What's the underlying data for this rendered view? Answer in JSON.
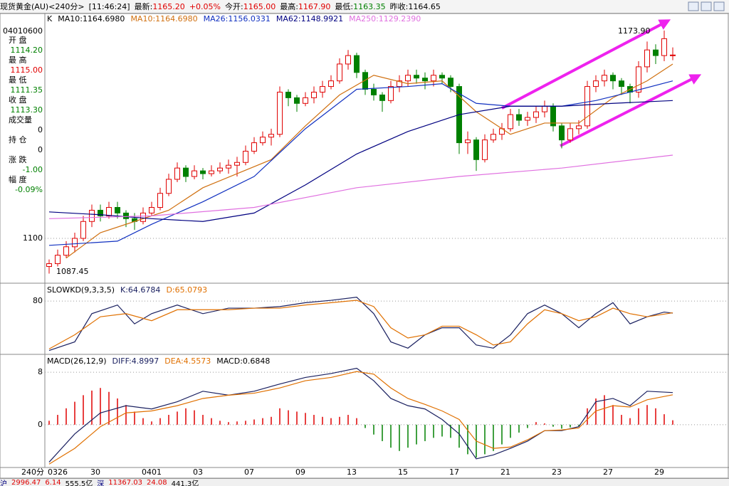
{
  "header": {
    "title": "现货黄金(AU)<240分>",
    "time": "[11:46:24]",
    "items": [
      {
        "label": "最新:",
        "value": "1165.20",
        "color": "#e00000"
      },
      {
        "label": "",
        "value": "+0.05%",
        "color": "#e00000"
      },
      {
        "label": "今开:",
        "value": "1165.00",
        "color": "#e00000"
      },
      {
        "label": "最高:",
        "value": "1167.90",
        "color": "#e00000"
      },
      {
        "label": "最低:",
        "value": "1163.35",
        "color": "#008000"
      },
      {
        "label": "昨收:",
        "value": "1164.65",
        "color": "#000000"
      }
    ]
  },
  "info_panel": {
    "date": "04010600",
    "items": [
      {
        "label": "开  盘",
        "value": "1114.20",
        "color": "#008000"
      },
      {
        "label": "最  高",
        "value": "1115.00",
        "color": "#e00000"
      },
      {
        "label": "最  低",
        "value": "1111.35",
        "color": "#008000"
      },
      {
        "label": "收  盘",
        "value": "1113.30",
        "color": "#008000"
      },
      {
        "label": "成交量",
        "value": "0",
        "color": "#000000"
      },
      {
        "label": "持  仓",
        "value": "0",
        "color": "#000000"
      },
      {
        "label": "涨  跌",
        "value": "-1.00",
        "color": "#008000"
      },
      {
        "label": "幅  度",
        "value": "-0.09%",
        "color": "#008000"
      }
    ]
  },
  "status_bar": [
    {
      "text": "沪",
      "color": "#000080"
    },
    {
      "text": "2996.47",
      "color": "#e00000"
    },
    {
      "text": "6.14",
      "color": "#e00000"
    },
    {
      "text": "555.5亿",
      "color": "#000000"
    },
    {
      "text": "深",
      "color": "#000080"
    },
    {
      "text": "11367.03",
      "color": "#e00000"
    },
    {
      "text": "24.08",
      "color": "#e00000"
    },
    {
      "text": "441.3亿",
      "color": "#000000"
    }
  ],
  "chart_data": [
    {
      "type": "candlestick",
      "label": "K",
      "legend_extra": "MA10:1164.6980",
      "high_label": "1173.90",
      "low_label": "1087.45",
      "up_color": "#e00000",
      "down_color": "#008000",
      "xlim": [
        -0.5,
        74.5
      ],
      "ylim": [
        1084.3,
        1179.7
      ],
      "yticks": [
        1100
      ],
      "grid": true,
      "ohlc": [
        [
          1090,
          1092.5,
          1087.45,
          1091
        ],
        [
          1091,
          1096,
          1090,
          1094
        ],
        [
          1094,
          1099,
          1093,
          1097
        ],
        [
          1097,
          1102,
          1095,
          1100
        ],
        [
          1100,
          1108,
          1099,
          1106
        ],
        [
          1106,
          1112,
          1104,
          1110
        ],
        [
          1110,
          1112,
          1106,
          1108
        ],
        [
          1108,
          1113,
          1107,
          1111
        ],
        [
          1111,
          1113,
          1107,
          1109
        ],
        [
          1109,
          1110,
          1104,
          1107
        ],
        [
          1107,
          1109,
          1103,
          1106
        ],
        [
          1106,
          1111,
          1105,
          1109
        ],
        [
          1109,
          1113,
          1108,
          1111
        ],
        [
          1111,
          1118,
          1110,
          1116
        ],
        [
          1116,
          1123,
          1115,
          1121
        ],
        [
          1121,
          1127,
          1120,
          1125
        ],
        [
          1125,
          1126,
          1120,
          1122
        ],
        [
          1122,
          1126,
          1121,
          1124
        ],
        [
          1124,
          1125,
          1121,
          1123
        ],
        [
          1123,
          1126,
          1122,
          1124
        ],
        [
          1124,
          1127,
          1123,
          1125
        ],
        [
          1125,
          1128,
          1123,
          1126
        ],
        [
          1126,
          1129,
          1122,
          1127
        ],
        [
          1127,
          1133,
          1126,
          1131
        ],
        [
          1131,
          1136,
          1130,
          1134
        ],
        [
          1134,
          1138,
          1133,
          1136
        ],
        [
          1136,
          1139,
          1133,
          1137
        ],
        [
          1137,
          1154,
          1136,
          1152
        ],
        [
          1152,
          1153,
          1147,
          1150
        ],
        [
          1150,
          1151,
          1145,
          1148
        ],
        [
          1148,
          1152,
          1147,
          1150
        ],
        [
          1150,
          1154,
          1148,
          1152
        ],
        [
          1152,
          1156,
          1150,
          1154
        ],
        [
          1154,
          1158,
          1153,
          1156
        ],
        [
          1156,
          1164,
          1155,
          1162
        ],
        [
          1162,
          1167,
          1160,
          1165
        ],
        [
          1165,
          1166,
          1157,
          1159
        ],
        [
          1159,
          1160,
          1151,
          1153
        ],
        [
          1153,
          1155,
          1149,
          1151
        ],
        [
          1151,
          1152,
          1145,
          1149
        ],
        [
          1149,
          1156,
          1148,
          1154
        ],
        [
          1154,
          1158,
          1152,
          1156
        ],
        [
          1156,
          1160,
          1154,
          1158
        ],
        [
          1158,
          1160,
          1155,
          1157
        ],
        [
          1157,
          1159,
          1153,
          1156
        ],
        [
          1156,
          1160,
          1154,
          1158
        ],
        [
          1158,
          1159,
          1155,
          1157
        ],
        [
          1157,
          1158,
          1152,
          1154
        ],
        [
          1154,
          1155,
          1130,
          1134
        ],
        [
          1134,
          1138,
          1130,
          1135
        ],
        [
          1135,
          1136,
          1124,
          1128
        ],
        [
          1128,
          1137,
          1127,
          1135
        ],
        [
          1135,
          1139,
          1134,
          1137
        ],
        [
          1137,
          1141,
          1135,
          1139
        ],
        [
          1139,
          1146,
          1138,
          1144
        ],
        [
          1144,
          1146,
          1140,
          1142
        ],
        [
          1142,
          1145,
          1140,
          1143
        ],
        [
          1143,
          1147,
          1141,
          1145
        ],
        [
          1145,
          1149,
          1143,
          1147
        ],
        [
          1147,
          1148,
          1138,
          1140
        ],
        [
          1140,
          1141,
          1132,
          1135
        ],
        [
          1135,
          1141,
          1134,
          1139
        ],
        [
          1139,
          1142,
          1137,
          1140
        ],
        [
          1140,
          1156,
          1139,
          1154
        ],
        [
          1154,
          1158,
          1152,
          1156
        ],
        [
          1156,
          1160,
          1154,
          1158
        ],
        [
          1158,
          1159,
          1153,
          1156
        ],
        [
          1156,
          1157,
          1151,
          1154
        ],
        [
          1154,
          1155,
          1148,
          1152
        ],
        [
          1152,
          1163,
          1150,
          1161
        ],
        [
          1161,
          1170,
          1159,
          1167
        ],
        [
          1167,
          1169,
          1162,
          1165
        ],
        [
          1165,
          1173.9,
          1163,
          1171
        ],
        [
          1165,
          1167.9,
          1163.35,
          1165.2
        ]
      ],
      "series": [
        {
          "name": "MA10:1164.6980",
          "color": "#d07010",
          "x": [
            2,
            6,
            10,
            14,
            18,
            22,
            26,
            30,
            34,
            38,
            42,
            46,
            50,
            54,
            58,
            62,
            66,
            70,
            73
          ],
          "values": [
            1093,
            1102,
            1106,
            1110,
            1118,
            1123,
            1128,
            1140,
            1151,
            1158,
            1155,
            1156,
            1145,
            1137,
            1141,
            1141,
            1150,
            1156,
            1162
          ]
        },
        {
          "name": "MA26:1156.0331",
          "color": "#1030c0",
          "x": [
            0,
            8,
            12,
            18,
            24,
            30,
            36,
            42,
            46,
            50,
            54,
            60,
            64,
            68,
            73
          ],
          "values": [
            1097.5,
            1099,
            1105,
            1113,
            1122,
            1139,
            1153,
            1154,
            1155,
            1148,
            1147,
            1147,
            1149,
            1152,
            1156
          ]
        },
        {
          "name": "MA62:1148.9921",
          "color": "#000080",
          "x": [
            0,
            6,
            12,
            18,
            24,
            30,
            36,
            42,
            48,
            54,
            60,
            66,
            73
          ],
          "values": [
            1109.4,
            1108.4,
            1107,
            1106,
            1109,
            1119,
            1130,
            1138,
            1144,
            1147,
            1147,
            1148,
            1149
          ]
        },
        {
          "name": "MA250:1129.2390",
          "color": "#e070e0",
          "x": [
            0,
            12,
            24,
            36,
            48,
            60,
            73
          ],
          "values": [
            1107,
            1108,
            1111,
            1118,
            1122,
            1125,
            1129.6
          ]
        }
      ]
    },
    {
      "type": "line",
      "title": "SLOWKD(9,3,3,5)",
      "xlim": [
        -0.5,
        74.5
      ],
      "ylim": [
        13,
        101
      ],
      "yticks": [
        80
      ],
      "grid": true,
      "series": [
        {
          "name": "K:64.6784",
          "color": "#1a2060",
          "x": [
            0,
            3,
            5,
            8,
            10,
            12,
            15,
            18,
            21,
            24,
            27,
            30,
            33,
            36,
            38,
            40,
            42,
            44,
            46,
            48,
            50,
            52,
            54,
            56,
            58,
            60,
            62,
            64,
            66,
            68,
            70,
            72,
            73
          ],
          "values": [
            17,
            28,
            64,
            75,
            51,
            64,
            75,
            64,
            71,
            71,
            73,
            78,
            81,
            85,
            64,
            28,
            20,
            37,
            46,
            46,
            24,
            20,
            37,
            64,
            75,
            64,
            46,
            64,
            78,
            51,
            60,
            66,
            64.68
          ]
        },
        {
          "name": "D:65.0793",
          "color": "#e07000",
          "x": [
            0,
            3,
            6,
            9,
            12,
            15,
            18,
            21,
            24,
            27,
            30,
            33,
            36,
            38,
            40,
            42,
            44,
            46,
            48,
            50,
            52,
            54,
            56,
            58,
            60,
            62,
            64,
            66,
            68,
            70,
            73
          ],
          "values": [
            19,
            37,
            60,
            64,
            55,
            69,
            69,
            69,
            71,
            71,
            75,
            78,
            81,
            73,
            46,
            33,
            37,
            48,
            48,
            37,
            24,
            28,
            51,
            69,
            64,
            55,
            60,
            71,
            64,
            60,
            65.08
          ]
        }
      ]
    },
    {
      "type": "macd",
      "title": "MACD(26,12,9)",
      "value_name": "MACD:0.6848",
      "pos_color": "#e00000",
      "neg_color": "#008000",
      "xlim": [
        -0.5,
        74.5
      ],
      "ylim": [
        -6.3,
        10.5
      ],
      "yticks": [
        0,
        8
      ],
      "grid": true,
      "xlabel": "240分",
      "xticks": [
        {
          "value": 1,
          "label": "0326"
        },
        {
          "value": 6,
          "label": "30"
        },
        {
          "value": 12,
          "label": "0401"
        },
        {
          "value": 18,
          "label": "03"
        },
        {
          "value": 24,
          "label": "07"
        },
        {
          "value": 30,
          "label": "09"
        },
        {
          "value": 36,
          "label": "13"
        },
        {
          "value": 42,
          "label": "15"
        },
        {
          "value": 48,
          "label": "17"
        },
        {
          "value": 54,
          "label": "21"
        },
        {
          "value": 60,
          "label": "23"
        },
        {
          "value": 66,
          "label": "27"
        },
        {
          "value": 72,
          "label": "29"
        }
      ],
      "values": [
        0.6,
        1.5,
        2.5,
        3.5,
        4.5,
        5.2,
        5.6,
        5,
        4,
        3,
        2,
        1,
        0.5,
        1,
        1.5,
        2,
        2.5,
        2.2,
        1.5,
        1,
        0.6,
        0.4,
        0.5,
        0.6,
        0.8,
        1.0,
        1.2,
        2.5,
        2.2,
        2,
        1.8,
        1.5,
        1.2,
        1,
        1.2,
        1.5,
        1,
        -0.5,
        -1.5,
        -2.5,
        -3.5,
        -4,
        -3.5,
        -3,
        -2.5,
        -2,
        -1.8,
        -2,
        -3.5,
        -4.5,
        -5,
        -4.5,
        -4,
        -3,
        -2,
        -1.2,
        -0.5,
        0.4,
        0.2,
        -0.3,
        -0.6,
        -0.4,
        -0.2,
        2.5,
        4,
        4.5,
        3,
        1.5,
        1,
        2.5,
        3,
        2.5,
        1.6,
        0.68
      ],
      "series": [
        {
          "name": "DIFF:4.8997",
          "color": "#1a2060",
          "x": [
            0,
            3,
            6,
            9,
            12,
            15,
            18,
            21,
            24,
            27,
            30,
            33,
            36,
            38,
            40,
            42,
            44,
            46,
            48,
            50,
            52,
            54,
            56,
            58,
            60,
            62,
            64,
            66,
            68,
            70,
            73
          ],
          "values": [
            -5.7,
            -1.4,
            1.8,
            2.9,
            2.4,
            3.5,
            5.1,
            4.5,
            5.1,
            6.2,
            7.2,
            7.8,
            8.6,
            6.7,
            4,
            2.9,
            2.4,
            0.8,
            -1.4,
            -5.2,
            -4.6,
            -3.6,
            -2.5,
            -0.9,
            -0.9,
            -0.3,
            3.5,
            4,
            2.9,
            5.1,
            4.9
          ]
        },
        {
          "name": "DEA:4.5573",
          "color": "#e07000",
          "x": [
            0,
            3,
            6,
            9,
            12,
            15,
            18,
            21,
            24,
            27,
            30,
            33,
            36,
            38,
            40,
            42,
            44,
            46,
            48,
            50,
            52,
            54,
            56,
            58,
            60,
            62,
            64,
            66,
            68,
            70,
            73
          ],
          "values": [
            -6,
            -3.6,
            -0.3,
            1.8,
            2.1,
            2.9,
            4,
            4.5,
            4.8,
            5.6,
            6.7,
            7.2,
            8.1,
            7.7,
            5.6,
            4,
            3.1,
            2.1,
            0.8,
            -2.5,
            -3.6,
            -3.4,
            -2.3,
            -0.9,
            -0.8,
            -0.5,
            2.1,
            2.9,
            2.7,
            3.8,
            4.56
          ]
        }
      ]
    }
  ]
}
